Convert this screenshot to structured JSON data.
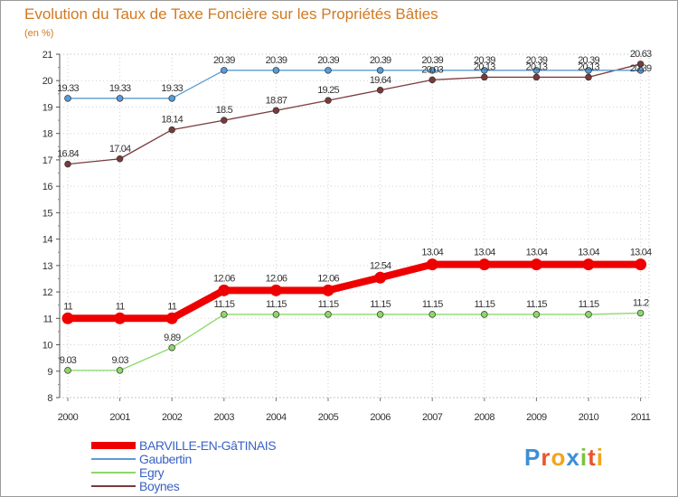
{
  "chart_data": {
    "type": "line",
    "title": "Evolution du Taux de Taxe Foncière sur les Propriétés Bâties",
    "subtitle": "(en %)",
    "xlabel": "",
    "ylabel": "",
    "ylim": [
      8,
      21
    ],
    "yticks": [
      "8",
      "9",
      "10",
      "11",
      "12",
      "13",
      "14",
      "15",
      "16",
      "17",
      "18",
      "19",
      "20",
      "21"
    ],
    "categories": [
      "2000",
      "2001",
      "2002",
      "2003",
      "2004",
      "2005",
      "2006",
      "2007",
      "2008",
      "2009",
      "2010",
      "2011"
    ],
    "series": [
      {
        "name": "BARVILLE-EN-GâTINAIS",
        "color": "#ee0000",
        "values": [
          11,
          11,
          11,
          12.06,
          12.06,
          12.06,
          12.54,
          13.04,
          13.04,
          13.04,
          13.04,
          13.04
        ],
        "labels": [
          "11",
          "11",
          "11",
          "12.06",
          "12.06",
          "12.06",
          "12.54",
          "13.04",
          "13.04",
          "13.04",
          "13.04",
          "13.04"
        ]
      },
      {
        "name": "Gaubertin",
        "color": "#5b9bd5",
        "values": [
          19.33,
          19.33,
          19.33,
          20.39,
          20.39,
          20.39,
          20.39,
          20.39,
          20.39,
          20.39,
          20.39,
          20.39
        ],
        "labels": [
          "19.33",
          "19.33",
          "19.33",
          "20.39",
          "20.39",
          "20.39",
          "20.39",
          "20.39",
          "20.39",
          "20.39",
          "20.39",
          "20.39"
        ]
      },
      {
        "name": "Egry",
        "color": "#8cd86a",
        "values": [
          9.03,
          9.03,
          9.89,
          11.15,
          11.15,
          11.15,
          11.15,
          11.15,
          11.15,
          11.15,
          11.15,
          11.2
        ],
        "labels": [
          "9.03",
          "9.03",
          "9.89",
          "11.15",
          "11.15",
          "11.15",
          "11.15",
          "11.15",
          "11.15",
          "11.15",
          "11.15",
          "11.2"
        ]
      },
      {
        "name": "Boynes",
        "color": "#7a3a3a",
        "values": [
          16.84,
          17.04,
          18.14,
          18.5,
          18.87,
          19.25,
          19.64,
          20.03,
          20.13,
          20.13,
          20.13,
          20.63
        ],
        "labels": [
          "16.84",
          "17.04",
          "18.14",
          "18.5",
          "18.87",
          "19.25",
          "19.64",
          "20.03",
          "20.13",
          "20.13",
          "20.13",
          "20.63"
        ]
      }
    ],
    "legend_position": "bottom-left"
  },
  "brand": {
    "letters": [
      "P",
      "r",
      "o",
      "x",
      "i",
      "t",
      "i"
    ],
    "colors": [
      "#3d8fd6",
      "#e8542f",
      "#f1a51c",
      "#3d8fd6",
      "#7cc242",
      "#e8542f",
      "#f1a51c"
    ]
  }
}
